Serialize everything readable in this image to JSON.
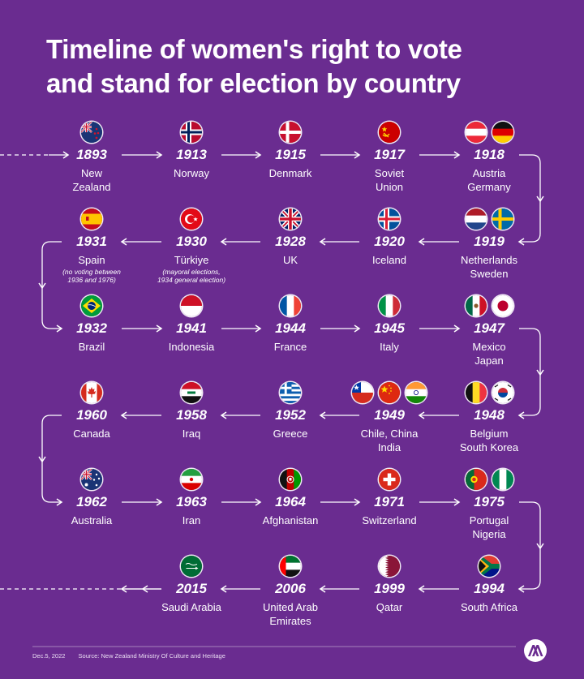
{
  "title_line1": "Timeline of women's right to vote",
  "title_line2": "and stand for election by country",
  "footer": {
    "date": "Dec.5, 2022",
    "source": "Source: New Zealand Ministry Of Culture and Heritage"
  },
  "rows": [
    [
      {
        "year": "1893",
        "country": [
          "New",
          "Zealand"
        ],
        "flags": [
          "new-zealand"
        ]
      },
      {
        "year": "1913",
        "country": [
          "Norway"
        ],
        "flags": [
          "norway"
        ]
      },
      {
        "year": "1915",
        "country": [
          "Denmark"
        ],
        "flags": [
          "denmark"
        ]
      },
      {
        "year": "1917",
        "country": [
          "Soviet",
          "Union"
        ],
        "flags": [
          "soviet-union"
        ]
      },
      {
        "year": "1918",
        "country": [
          "Austria",
          "Germany"
        ],
        "flags": [
          "austria",
          "germany"
        ]
      }
    ],
    [
      {
        "year": "1931",
        "country": [
          "Spain"
        ],
        "note": [
          "(no voting between",
          "1936 and 1976)"
        ],
        "flags": [
          "spain"
        ]
      },
      {
        "year": "1930",
        "country": [
          "Türkiye"
        ],
        "note": [
          "(mayoral elections,",
          "1934 general election)"
        ],
        "flags": [
          "turkiye"
        ]
      },
      {
        "year": "1928",
        "country": [
          "UK"
        ],
        "flags": [
          "uk"
        ]
      },
      {
        "year": "1920",
        "country": [
          "Iceland"
        ],
        "flags": [
          "iceland"
        ]
      },
      {
        "year": "1919",
        "country": [
          "Netherlands",
          "Sweden"
        ],
        "flags": [
          "netherlands",
          "sweden"
        ]
      }
    ],
    [
      {
        "year": "1932",
        "country": [
          "Brazil"
        ],
        "flags": [
          "brazil"
        ]
      },
      {
        "year": "1941",
        "country": [
          "Indonesia"
        ],
        "flags": [
          "indonesia"
        ]
      },
      {
        "year": "1944",
        "country": [
          "France"
        ],
        "flags": [
          "france"
        ]
      },
      {
        "year": "1945",
        "country": [
          "Italy"
        ],
        "flags": [
          "italy"
        ]
      },
      {
        "year": "1947",
        "country": [
          "Mexico",
          "Japan"
        ],
        "flags": [
          "mexico",
          "japan"
        ]
      }
    ],
    [
      {
        "year": "1960",
        "country": [
          "Canada"
        ],
        "flags": [
          "canada"
        ]
      },
      {
        "year": "1958",
        "country": [
          "Iraq"
        ],
        "flags": [
          "iraq"
        ]
      },
      {
        "year": "1952",
        "country": [
          "Greece"
        ],
        "flags": [
          "greece"
        ]
      },
      {
        "year": "1949",
        "country": [
          "Chile, China",
          "India"
        ],
        "flags": [
          "chile",
          "china",
          "india"
        ]
      },
      {
        "year": "1948",
        "country": [
          "Belgium",
          "South Korea"
        ],
        "flags": [
          "belgium",
          "south-korea"
        ]
      }
    ],
    [
      {
        "year": "1962",
        "country": [
          "Australia"
        ],
        "flags": [
          "australia"
        ]
      },
      {
        "year": "1963",
        "country": [
          "Iran"
        ],
        "flags": [
          "iran"
        ]
      },
      {
        "year": "1964",
        "country": [
          "Afghanistan"
        ],
        "flags": [
          "afghanistan"
        ]
      },
      {
        "year": "1971",
        "country": [
          "Switzerland"
        ],
        "flags": [
          "switzerland"
        ]
      },
      {
        "year": "1975",
        "country": [
          "Portugal",
          "Nigeria"
        ],
        "flags": [
          "portugal",
          "nigeria"
        ]
      }
    ],
    [
      {
        "year": "",
        "country": [],
        "flags": []
      },
      {
        "year": "2015",
        "country": [
          "Saudi Arabia"
        ],
        "flags": [
          "saudi-arabia"
        ]
      },
      {
        "year": "2006",
        "country": [
          "United Arab",
          "Emirates"
        ],
        "flags": [
          "uae"
        ]
      },
      {
        "year": "1999",
        "country": [
          "Qatar"
        ],
        "flags": [
          "qatar"
        ]
      },
      {
        "year": "1994",
        "country": [
          "South Africa"
        ],
        "flags": [
          "south-africa"
        ]
      }
    ]
  ],
  "colors": {
    "background": "#6a2c90",
    "text": "#ffffff",
    "line": "#ffffff"
  }
}
